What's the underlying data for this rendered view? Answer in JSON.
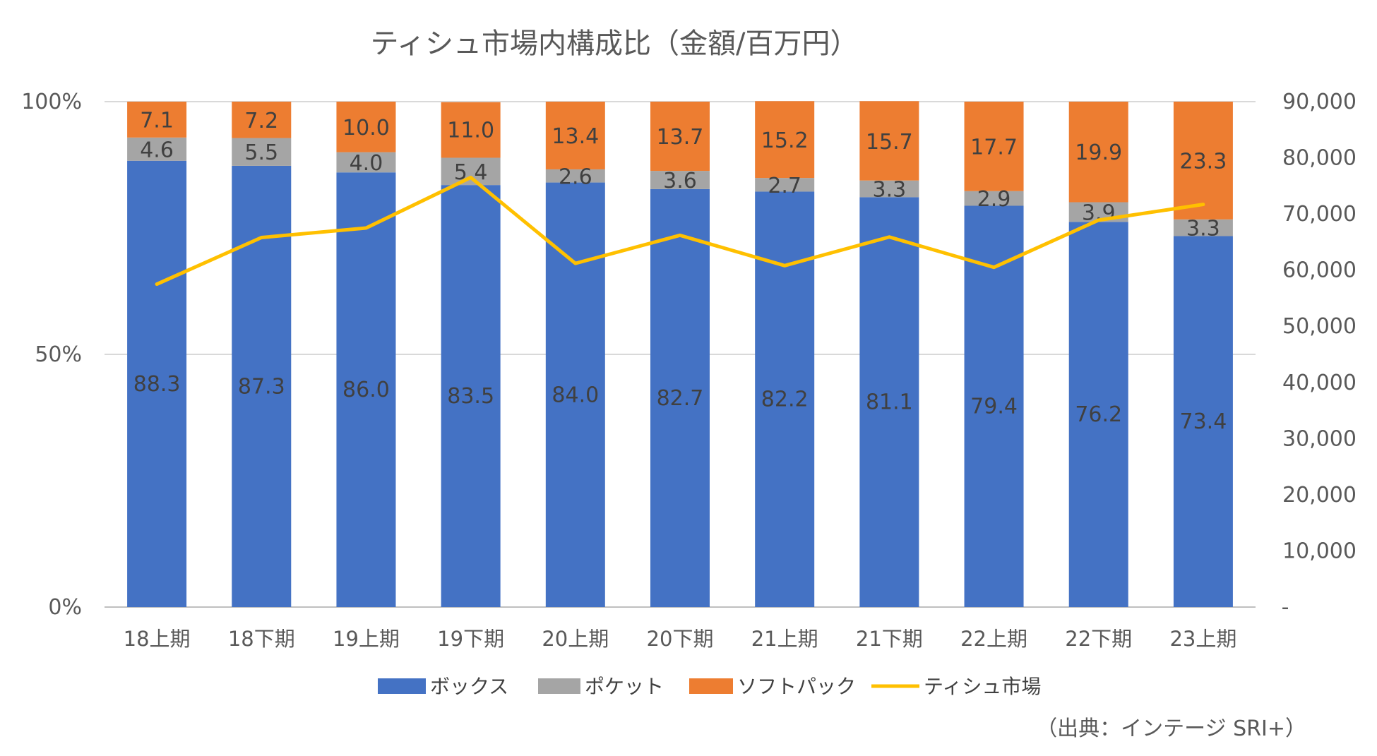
{
  "chart_data": {
    "type": "bar",
    "stacked": true,
    "percent_stacked": true,
    "title": "ティシュ市場内構成比（金額/百万円）",
    "source": "（出典：インテージ SRI+）",
    "categories": [
      "18上期",
      "18下期",
      "19上期",
      "19下期",
      "20上期",
      "20下期",
      "21上期",
      "21下期",
      "22上期",
      "22下期",
      "23上期"
    ],
    "series": [
      {
        "name": "ボックス",
        "type": "bar",
        "color": "#4472C4",
        "axis": "left",
        "values": [
          88.3,
          87.3,
          86.0,
          83.5,
          84.0,
          82.7,
          82.2,
          81.1,
          79.4,
          76.2,
          73.4
        ]
      },
      {
        "name": "ポケット",
        "type": "bar",
        "color": "#A5A5A5",
        "axis": "left",
        "values": [
          4.6,
          5.5,
          4.0,
          5.4,
          2.6,
          3.6,
          2.7,
          3.3,
          2.9,
          3.9,
          3.3
        ]
      },
      {
        "name": "ソフトパック",
        "type": "bar",
        "color": "#ED7D31",
        "axis": "left",
        "values": [
          7.1,
          7.2,
          10.0,
          11.0,
          13.4,
          13.7,
          15.2,
          15.7,
          17.7,
          19.9,
          23.3
        ]
      },
      {
        "name": "ティシュ市場",
        "type": "line",
        "color": "#FFC000",
        "axis": "right",
        "values": [
          57500,
          65800,
          67500,
          76500,
          61200,
          66200,
          60800,
          65900,
          60500,
          68900,
          71700
        ]
      }
    ],
    "value_labels": [
      [
        "88.3",
        "87.3",
        "86.0",
        "83.5",
        "84.0",
        "82.7",
        "82.2",
        "81.1",
        "79.4",
        "76.2",
        "73.4"
      ],
      [
        "4.6",
        "5.5",
        "4.0",
        "5.4",
        "2.6",
        "3.6",
        "2.7",
        "3.3",
        "2.9",
        "3.9",
        "3.3"
      ],
      [
        "7.1",
        "7.2",
        "10.0",
        "11.0",
        "13.4",
        "13.7",
        "15.2",
        "15.7",
        "17.7",
        "19.9",
        "23.3"
      ]
    ],
    "y_left": {
      "min": 0,
      "max": 100,
      "ticks": [
        0,
        50,
        100
      ],
      "tick_labels": [
        "0%",
        "50%",
        "100%"
      ]
    },
    "y_right": {
      "min": 0,
      "max": 90000,
      "ticks": [
        0,
        10000,
        20000,
        30000,
        40000,
        50000,
        60000,
        70000,
        80000,
        90000
      ],
      "tick_labels": [
        "-",
        "10,000",
        "20,000",
        "30,000",
        "40,000",
        "50,000",
        "60,000",
        "70,000",
        "80,000",
        "90,000"
      ]
    },
    "grid": true,
    "legend_position": "bottom"
  }
}
